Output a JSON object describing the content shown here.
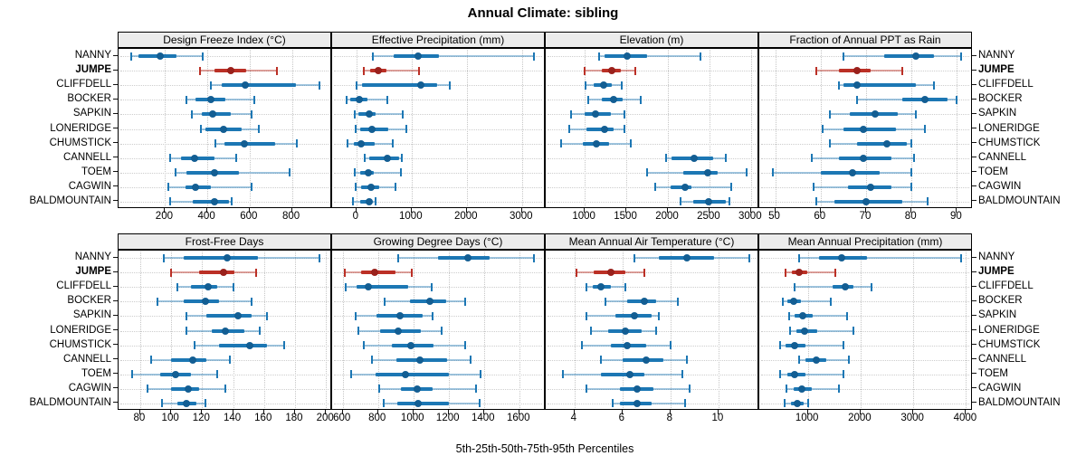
{
  "title": "Annual Climate: sibling",
  "footer": "5th-25th-50th-75th-95th Percentiles",
  "colors": {
    "blue": "#1C77B4",
    "blue_light": "rgba(28,119,180,0.42)",
    "blue_dot": "#135E93",
    "red": "#BB3026",
    "red_light": "rgba(187,48,38,0.45)",
    "red_dot": "#9A211C",
    "strip_bg": "#ECECEC",
    "grid": "#C6C6C6",
    "border": "#000000"
  },
  "chart_data": {
    "type": "scatter",
    "subtype": "trellis-dot-whisker (lattice), 2 rows x 4 columns, percentiles per site",
    "percentile_labels": [
      "5th",
      "25th",
      "50th",
      "75th",
      "95th"
    ],
    "sites": [
      "NANNY",
      "JUMPE",
      "CLIFFDELL",
      "BOCKER",
      "SAPKIN",
      "LONERIDGE",
      "CHUMSTICK",
      "CANNELL",
      "TOEM",
      "CAGWIN",
      "BALDMOUNTAIN"
    ],
    "highlight_site": "JUMPE",
    "legend_position": "none",
    "grid": "dotted",
    "panels": [
      {
        "label": "Design Freeze Index (°C)",
        "xlim": [
          -20,
          990
        ],
        "ticks": [
          200,
          400,
          600,
          800
        ],
        "values": [
          [
            40,
            75,
            175,
            255,
            380
          ],
          [
            365,
            435,
            510,
            585,
            730
          ],
          [
            415,
            470,
            580,
            820,
            930
          ],
          [
            300,
            345,
            415,
            485,
            620
          ],
          [
            325,
            375,
            425,
            510,
            610
          ],
          [
            370,
            390,
            475,
            560,
            645
          ],
          [
            440,
            480,
            575,
            720,
            825
          ],
          [
            225,
            275,
            340,
            435,
            535
          ],
          [
            250,
            300,
            435,
            550,
            790
          ],
          [
            215,
            295,
            345,
            415,
            610
          ],
          [
            225,
            330,
            435,
            500,
            515
          ]
        ]
      },
      {
        "label": "Effective Precipitation (mm)",
        "xlim": [
          -440,
          3430
        ],
        "ticks": [
          0,
          1000,
          2000,
          3000
        ],
        "values": [
          [
            300,
            680,
            1110,
            1500,
            3215
          ],
          [
            135,
            245,
            395,
            545,
            1130
          ],
          [
            10,
            100,
            1165,
            1465,
            1695
          ],
          [
            -180,
            -120,
            45,
            200,
            555
          ],
          [
            -35,
            40,
            240,
            340,
            840
          ],
          [
            -20,
            65,
            285,
            580,
            910
          ],
          [
            -165,
            -45,
            90,
            330,
            665
          ],
          [
            150,
            240,
            555,
            780,
            830
          ],
          [
            -25,
            65,
            215,
            320,
            800
          ],
          [
            -20,
            90,
            270,
            420,
            710
          ],
          [
            -70,
            65,
            230,
            260,
            350
          ]
        ]
      },
      {
        "label": "Elevation (m)",
        "xlim": [
          530,
          3100
        ],
        "ticks": [
          1000,
          1500,
          2000,
          2500,
          3000
        ],
        "values": [
          [
            1175,
            1240,
            1510,
            1750,
            2390
          ],
          [
            995,
            1200,
            1320,
            1435,
            1605
          ],
          [
            1010,
            1110,
            1225,
            1320,
            1445
          ],
          [
            1045,
            1200,
            1350,
            1455,
            1670
          ],
          [
            835,
            1000,
            1125,
            1310,
            1480
          ],
          [
            810,
            1020,
            1235,
            1345,
            1480
          ],
          [
            710,
            980,
            1145,
            1290,
            1555
          ],
          [
            1980,
            2040,
            2315,
            2545,
            2700
          ],
          [
            1750,
            2180,
            2480,
            2600,
            2945
          ],
          [
            1845,
            2035,
            2210,
            2280,
            2765
          ],
          [
            2155,
            2310,
            2485,
            2700,
            2745
          ]
        ]
      },
      {
        "label": "Fraction of Annual PPT as Rain",
        "xlim": [
          46.5,
          93.5
        ],
        "ticks": [
          50,
          60,
          70,
          80,
          90
        ],
        "values": [
          [
            65,
            74,
            81,
            85,
            91
          ],
          [
            59,
            64,
            68,
            71,
            78
          ],
          [
            64,
            65,
            68,
            81,
            85
          ],
          [
            68,
            78,
            83,
            88,
            90
          ],
          [
            62,
            66.5,
            72,
            77,
            81
          ],
          [
            60.5,
            65,
            69.5,
            76.5,
            83
          ],
          [
            62,
            68,
            74.5,
            79,
            80
          ],
          [
            58,
            64,
            69.5,
            75.5,
            80.5
          ],
          [
            49.5,
            60,
            67,
            73,
            80
          ],
          [
            58.5,
            66,
            71,
            75.5,
            80
          ],
          [
            59,
            63,
            70,
            78,
            83.5
          ]
        ]
      },
      {
        "label": "Frost-Free Days",
        "xlim": [
          66,
          204
        ],
        "ticks": [
          80,
          100,
          120,
          140,
          160,
          180,
          200
        ],
        "values": [
          [
            95,
            108,
            136,
            156,
            196
          ],
          [
            100,
            118,
            134,
            141,
            155
          ],
          [
            104,
            113,
            124,
            130,
            140
          ],
          [
            91,
            108,
            122,
            131,
            152
          ],
          [
            110,
            123,
            143,
            152,
            162
          ],
          [
            110,
            126,
            135,
            147,
            157
          ],
          [
            115,
            131,
            151,
            162,
            173
          ],
          [
            87,
            100,
            114,
            123,
            138
          ],
          [
            75,
            93,
            103,
            113,
            130
          ],
          [
            85,
            100,
            111,
            118,
            135
          ],
          [
            94,
            104,
            110,
            116,
            122
          ]
        ]
      },
      {
        "label": "Growing Degree Days (°C)",
        "xlim": [
          540,
          1750
        ],
        "ticks": [
          600,
          800,
          1000,
          1200,
          1400,
          1600
        ],
        "values": [
          [
            915,
            1140,
            1310,
            1430,
            1685
          ],
          [
            610,
            705,
            780,
            900,
            990
          ],
          [
            615,
            680,
            745,
            970,
            1105
          ],
          [
            835,
            980,
            1095,
            1185,
            1295
          ],
          [
            675,
            790,
            925,
            1055,
            1110
          ],
          [
            690,
            810,
            915,
            1040,
            1160
          ],
          [
            720,
            880,
            985,
            1115,
            1295
          ],
          [
            765,
            905,
            1035,
            1190,
            1325
          ],
          [
            650,
            785,
            955,
            1200,
            1380
          ],
          [
            805,
            930,
            1020,
            1110,
            1355
          ],
          [
            830,
            910,
            1025,
            1200,
            1375
          ]
        ]
      },
      {
        "label": "Mean Annual Air Temperature (°C)",
        "xlim": [
          2.8,
          11.7
        ],
        "ticks": [
          4,
          6,
          8,
          10
        ],
        "values": [
          [
            6.5,
            7.5,
            8.7,
            9.8,
            11.3
          ],
          [
            4.1,
            4.8,
            5.5,
            6.1,
            6.9
          ],
          [
            4.5,
            4.75,
            5.1,
            5.5,
            6.1
          ],
          [
            5.3,
            6.2,
            6.9,
            7.4,
            8.3
          ],
          [
            4.5,
            5.7,
            6.5,
            7.2,
            7.5
          ],
          [
            4.7,
            5.4,
            6.1,
            6.8,
            7.4
          ],
          [
            4.3,
            5.5,
            6.2,
            7.0,
            8.0
          ],
          [
            5.1,
            6.0,
            7.0,
            7.7,
            8.7
          ],
          [
            3.5,
            5.1,
            6.3,
            6.9,
            8.5
          ],
          [
            4.5,
            5.9,
            6.6,
            7.3,
            8.8
          ],
          [
            5.6,
            5.9,
            6.6,
            7.2,
            8.6
          ]
        ]
      },
      {
        "label": "Mean Annual Precipitation (mm)",
        "xlim": [
          80,
          4130
        ],
        "ticks": [
          1000,
          2000,
          3000,
          4000
        ],
        "values": [
          [
            830,
            1210,
            1650,
            2130,
            3915
          ],
          [
            580,
            690,
            830,
            985,
            1515
          ],
          [
            745,
            1470,
            1715,
            1870,
            2210
          ],
          [
            525,
            610,
            725,
            870,
            1430
          ],
          [
            640,
            755,
            900,
            1100,
            1740
          ],
          [
            655,
            785,
            945,
            1185,
            1870
          ],
          [
            470,
            585,
            745,
            955,
            1680
          ],
          [
            830,
            955,
            1155,
            1355,
            1785
          ],
          [
            470,
            610,
            745,
            955,
            1670
          ],
          [
            600,
            725,
            885,
            1080,
            1595
          ],
          [
            555,
            680,
            795,
            925,
            1000
          ]
        ]
      }
    ]
  }
}
